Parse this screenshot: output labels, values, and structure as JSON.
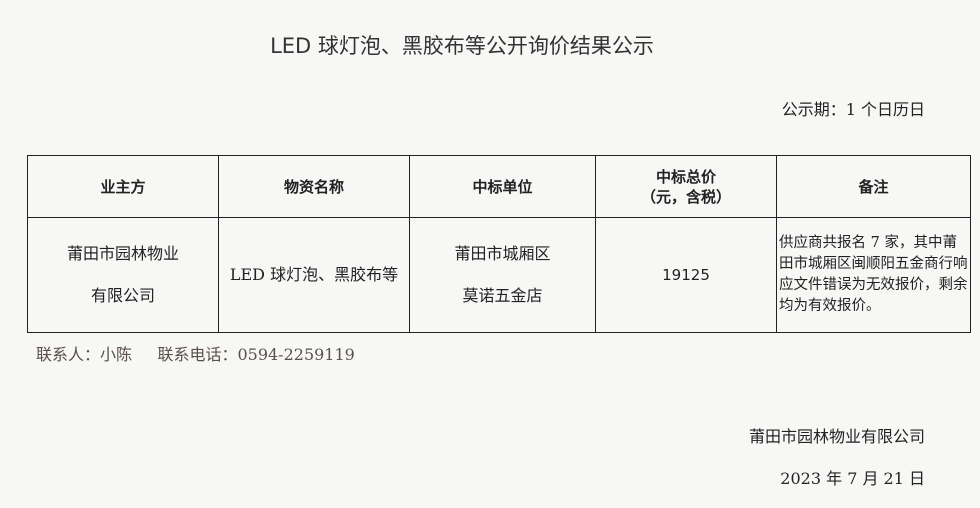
{
  "title": "LED 球灯泡、黑胶布等公开询价结果公示",
  "period": "公示期：1 个日历日",
  "table": {
    "headers": [
      "业主方",
      "物资名称",
      "中标单位",
      "中标总价",
      "（元，含税）",
      "备注"
    ],
    "row": {
      "owner": [
        "莆田市园林物业",
        "有限公司"
      ],
      "material": "LED 球灯泡、黑胶布等",
      "winner": [
        "莆田市城厢区",
        "莫诺五金店"
      ],
      "price": "19125",
      "note": "供应商共报名 7 家，其中莆田市城厢区闽顺阳五金商行响应文件错误为无效报价，剩余均为有效报价。"
    }
  },
  "contact": {
    "person": "联系人：小陈",
    "phone": "联系电话：0594-2259119"
  },
  "footer": {
    "org": "莆田市园林物业有限公司",
    "date": "2023 年 7 月 21 日"
  }
}
